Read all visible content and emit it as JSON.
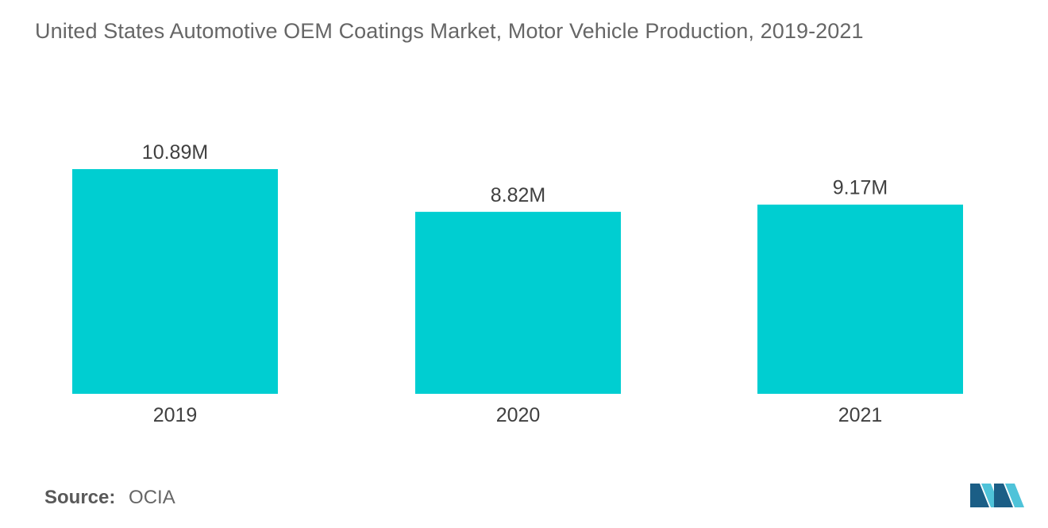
{
  "title": "United States Automotive OEM Coatings Market, Motor Vehicle Production, 2019-2021",
  "source": {
    "label": "Source:",
    "value": "OCIA"
  },
  "colors": {
    "bar": "#00CED1",
    "logo_dark": "#1B5E86",
    "logo_light": "#4FC3D9"
  },
  "logo_icon": "mordor-intelligence-logo-icon",
  "chart_data": {
    "type": "bar",
    "categories": [
      "2019",
      "2020",
      "2021"
    ],
    "values": [
      10.89,
      8.82,
      9.17
    ],
    "data_labels": [
      "10.89M",
      "8.82M",
      "9.17M"
    ],
    "title": "United States Automotive OEM Coatings Market, Motor Vehicle Production, 2019-2021",
    "xlabel": "",
    "ylabel": "",
    "grid": false,
    "legend": "none"
  }
}
